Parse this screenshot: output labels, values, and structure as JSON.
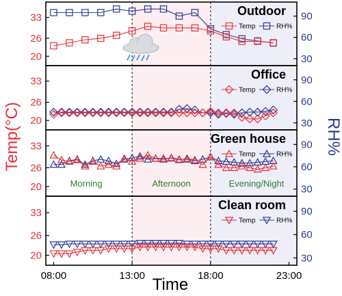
{
  "chart_data": {
    "type": "line",
    "xlabel": "Time",
    "ylabel_left": "Temp(°C)",
    "ylabel_right": "RH%",
    "xlim": [
      7.5,
      23.5
    ],
    "x_ticks": [
      8,
      13,
      18,
      23
    ],
    "x_tick_labels": [
      "08:00",
      "13:00",
      "18:00",
      "23:00"
    ],
    "temp_ticks": [
      20,
      26,
      33
    ],
    "rh_ticks": [
      30,
      60,
      90
    ],
    "ylim_temp": [
      18,
      37
    ],
    "ylim_rh": [
      25,
      105
    ],
    "period_dividers": [
      13,
      18
    ],
    "periods": [
      "Morning",
      "Afternoon",
      "Evening/Night"
    ],
    "colors": {
      "temp": "#e8303a",
      "rh": "#2b3a92",
      "afternoon_bg": "#fdeef1",
      "evening_bg": "#eeeef8",
      "period_text": "#2e7d32"
    },
    "panels": [
      {
        "title": "Outdoor",
        "marker": "square",
        "legend": [
          "Temp",
          "RH%"
        ],
        "icon": "rain-cloud-icon",
        "x": [
          8,
          9,
          10,
          11,
          12,
          13,
          14,
          15,
          16,
          17,
          18,
          19,
          20,
          21,
          22
        ],
        "temp": [
          23.5,
          24.5,
          25.5,
          26,
          27,
          28.5,
          30,
          29.5,
          29.5,
          29.5,
          28.5,
          26.5,
          25,
          25,
          24.5
        ],
        "rh": [
          95,
          95,
          95,
          95,
          100,
          97,
          100,
          100,
          90,
          95,
          72,
          64,
          58,
          55,
          52
        ]
      },
      {
        "title": "Office",
        "marker": "diamond",
        "legend": [
          "Temp",
          "RH%"
        ],
        "x": [
          8,
          8.5,
          9,
          9.5,
          10,
          10.5,
          11,
          11.5,
          12,
          12.5,
          13,
          13.5,
          14,
          14.5,
          15,
          15.5,
          16,
          16.5,
          17,
          17.5,
          18,
          18.5,
          19,
          19.5,
          20,
          20.5,
          21,
          21.5,
          22
        ],
        "temp": [
          22,
          22.5,
          22.5,
          22.5,
          22.5,
          22.5,
          22.5,
          22.5,
          22.5,
          22.5,
          22.5,
          22.5,
          22.5,
          22.5,
          22.5,
          22.5,
          22.5,
          22.5,
          22.5,
          22.5,
          23,
          22.5,
          22.5,
          22.5,
          21,
          20.5,
          20.5,
          21.5,
          22.5
        ],
        "rh": [
          45,
          45,
          45,
          45,
          45,
          45,
          45,
          45,
          45,
          45,
          45,
          45,
          45,
          45,
          45,
          45,
          49,
          50,
          48,
          44,
          44,
          42,
          43,
          42,
          44,
          45,
          45,
          46,
          48
        ]
      },
      {
        "title": "Green house",
        "marker": "triangle-up",
        "legend": [
          "Temp",
          "RH%"
        ],
        "x": [
          8,
          8.5,
          9,
          9.5,
          10,
          10.5,
          11,
          11.5,
          12,
          12.5,
          13,
          13.5,
          14,
          14.5,
          15,
          15.5,
          16,
          16.5,
          17,
          17.5,
          18,
          18.5,
          19,
          19.5,
          20,
          20.5,
          21,
          21.5,
          22
        ],
        "temp": [
          30,
          28.5,
          28,
          28.5,
          26.5,
          28,
          26.5,
          27,
          26.5,
          29,
          28,
          29,
          30,
          29,
          29,
          29,
          28.5,
          29,
          28.5,
          27,
          29.5,
          27,
          26,
          26,
          26.5,
          26,
          25.5,
          26,
          26.5
        ],
        "rh": [
          63,
          63,
          68,
          70,
          63,
          68,
          70,
          68,
          64,
          70,
          72,
          74,
          70,
          71,
          70,
          72,
          70,
          70,
          68,
          70,
          73,
          68,
          67,
          66,
          65,
          65,
          66,
          67,
          68
        ]
      },
      {
        "title": "Clean room",
        "marker": "triangle-down",
        "legend": [
          "Temp",
          "RH%"
        ],
        "x": [
          8,
          8.5,
          9,
          9.5,
          10,
          10.5,
          11,
          11.5,
          12,
          12.5,
          13,
          13.5,
          14,
          14.5,
          15,
          15.5,
          16,
          16.5,
          17,
          17.5,
          18,
          18.5,
          19,
          19.5,
          20,
          20.5,
          21,
          21.5,
          22
        ],
        "temp": [
          20.5,
          20.5,
          20.5,
          21,
          21.5,
          21.5,
          21.5,
          22,
          22,
          22,
          22,
          22.5,
          22.5,
          22.5,
          22.5,
          22.5,
          22.5,
          22.5,
          22.5,
          22,
          22,
          22,
          21.5,
          21.5,
          21.5,
          21.5,
          21.5,
          21.5,
          21.5
        ],
        "rh": [
          47,
          47,
          48,
          48,
          48,
          48,
          48,
          48,
          48,
          48,
          48,
          49,
          49,
          49,
          49,
          49,
          49,
          48,
          48,
          48,
          48,
          48,
          48,
          48,
          48,
          48,
          48,
          48,
          48
        ]
      }
    ]
  }
}
